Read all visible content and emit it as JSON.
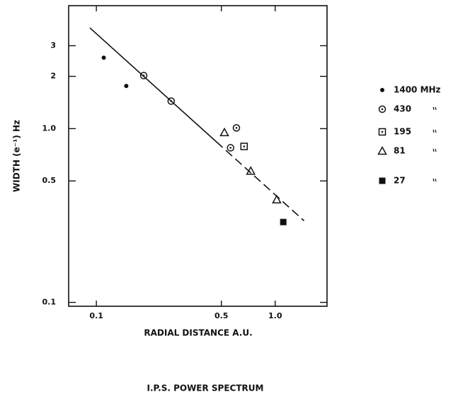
{
  "chart_data": {
    "type": "scatter",
    "caption": "I.P.S.  POWER  SPECTRUM",
    "x_label": "RADIAL DISTANCE  A.U.",
    "y_label": "WIDTH (e⁻¹)   Hz",
    "log_x": true,
    "log_y": true,
    "xlim": [
      0.07,
      1.95
    ],
    "ylim": [
      0.095,
      5.1
    ],
    "xticks": [
      0.1,
      0.5,
      {
        "value": 1,
        "label": "1.0"
      }
    ],
    "yticks": [
      0.1,
      0.5,
      {
        "value": 1,
        "label": "1.0"
      },
      2,
      3
    ],
    "series": [
      {
        "name": "1400 MHz",
        "color": "#111",
        "marker": "dot",
        "x": [
          0.11,
          0.147
        ],
        "values": [
          2.56,
          1.76
        ]
      },
      {
        "name": "430",
        "color": "#111",
        "marker": "circle-dot",
        "x": [
          0.184,
          0.262,
          0.563,
          0.607
        ],
        "values": [
          2.02,
          1.44,
          0.776,
          1.01
        ]
      },
      {
        "name": "195",
        "color": "#111",
        "marker": "square-dot",
        "x": [
          0.67
        ],
        "values": [
          0.79
        ]
      },
      {
        "name": "81",
        "color": "#111",
        "marker": "triangle",
        "x": [
          0.52,
          0.73,
          1.02
        ],
        "values": [
          0.95,
          0.57,
          0.39
        ]
      },
      {
        "name": "27",
        "color": "#111",
        "marker": "square",
        "x": [
          1.11
        ],
        "values": [
          0.29
        ]
      }
    ],
    "fit_line": {
      "color": "#111",
      "x": [
        0.092,
        1.45
      ],
      "values": [
        3.8,
        0.295
      ]
    }
  }
}
